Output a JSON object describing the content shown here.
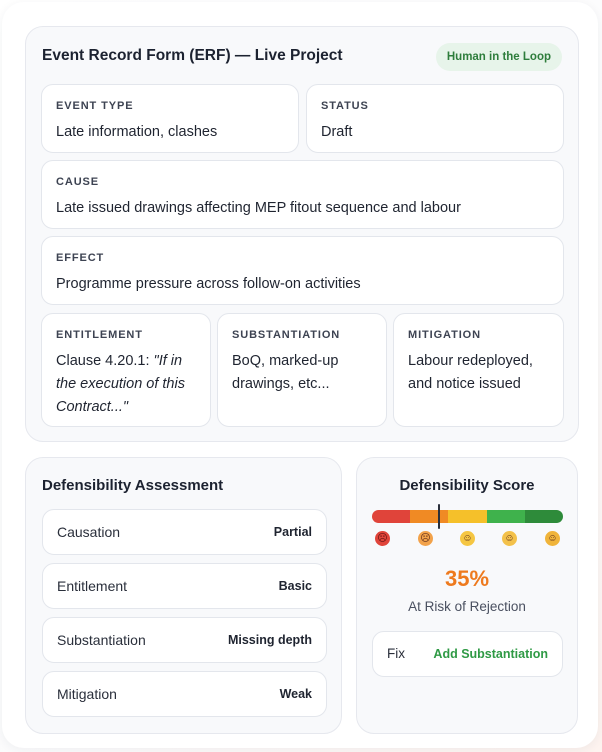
{
  "erf": {
    "title": "Event Record Form (ERF) — Live Project",
    "badge": "Human in the Loop",
    "event_type": {
      "label": "EVENT TYPE",
      "value": "Late information, clashes"
    },
    "status": {
      "label": "STATUS",
      "value": "Draft"
    },
    "cause": {
      "label": "CAUSE",
      "value": "Late issued drawings affecting MEP fitout sequence and labour"
    },
    "effect": {
      "label": "EFFECT",
      "value": "Programme pressure across follow-on activities"
    },
    "entitlement": {
      "label": "ENTITLEMENT",
      "value_prefix": "Clause 4.20.1: ",
      "value_quote": "\"If in the execution of this Contract...\""
    },
    "substantiation": {
      "label": "SUBSTANTIATION",
      "value": "BoQ, marked-up drawings, etc..."
    },
    "mitigation": {
      "label": "MITIGATION",
      "value": "Labour redeployed, and notice issued"
    }
  },
  "assessment": {
    "title": "Defensibility Assessment",
    "rows": [
      {
        "name": "Causation",
        "value": "Partial"
      },
      {
        "name": "Entitlement",
        "value": "Basic"
      },
      {
        "name": "Substantiation",
        "value": "Missing depth"
      },
      {
        "name": "Mitigation",
        "value": "Weak"
      }
    ]
  },
  "score": {
    "title": "Defensibility Score",
    "percent": "35%",
    "level_fraction": 0.35,
    "status": "At Risk of Rejection",
    "fix_label": "Fix",
    "fix_action": "Add Substantiation",
    "scale_colors": [
      "#e0443a",
      "#f08a24",
      "#f5c02a",
      "#3fb24c",
      "#2e8b3a"
    ],
    "face_icons": [
      "angry-face-icon",
      "worried-face-icon",
      "neutral-face-icon",
      "slightly-smiling-face-icon",
      "grinning-face-icon"
    ]
  }
}
